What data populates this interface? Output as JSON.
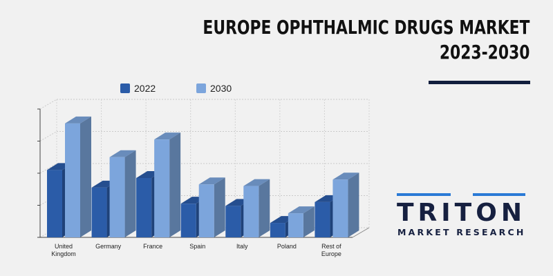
{
  "header": {
    "title_line1": "EUROPE OPHTHALMIC DRUGS MARKET",
    "title_line2": "2023-2030"
  },
  "legend": {
    "items": [
      {
        "label": "2022",
        "color": "#2b5ca8"
      },
      {
        "label": "2030",
        "color": "#7ca5dc"
      }
    ]
  },
  "chart_data": {
    "type": "bar",
    "categories": [
      "United Kingdom",
      "Germany",
      "France",
      "Spain",
      "Italy",
      "Poland",
      "Rest of Europe"
    ],
    "series": [
      {
        "name": "2022",
        "values": [
          2.1,
          1.55,
          1.85,
          1.05,
          0.98,
          0.45,
          1.1
        ]
      },
      {
        "name": "2030",
        "values": [
          3.55,
          2.5,
          3.05,
          1.65,
          1.6,
          0.75,
          1.8
        ]
      }
    ],
    "ylim": [
      0,
      4
    ],
    "grid": true,
    "legend_position": "top"
  },
  "logo": {
    "word": "TRITON",
    "subtitle": "MARKET RESEARCH",
    "accent": "#2a7ad6",
    "color": "#162040"
  }
}
